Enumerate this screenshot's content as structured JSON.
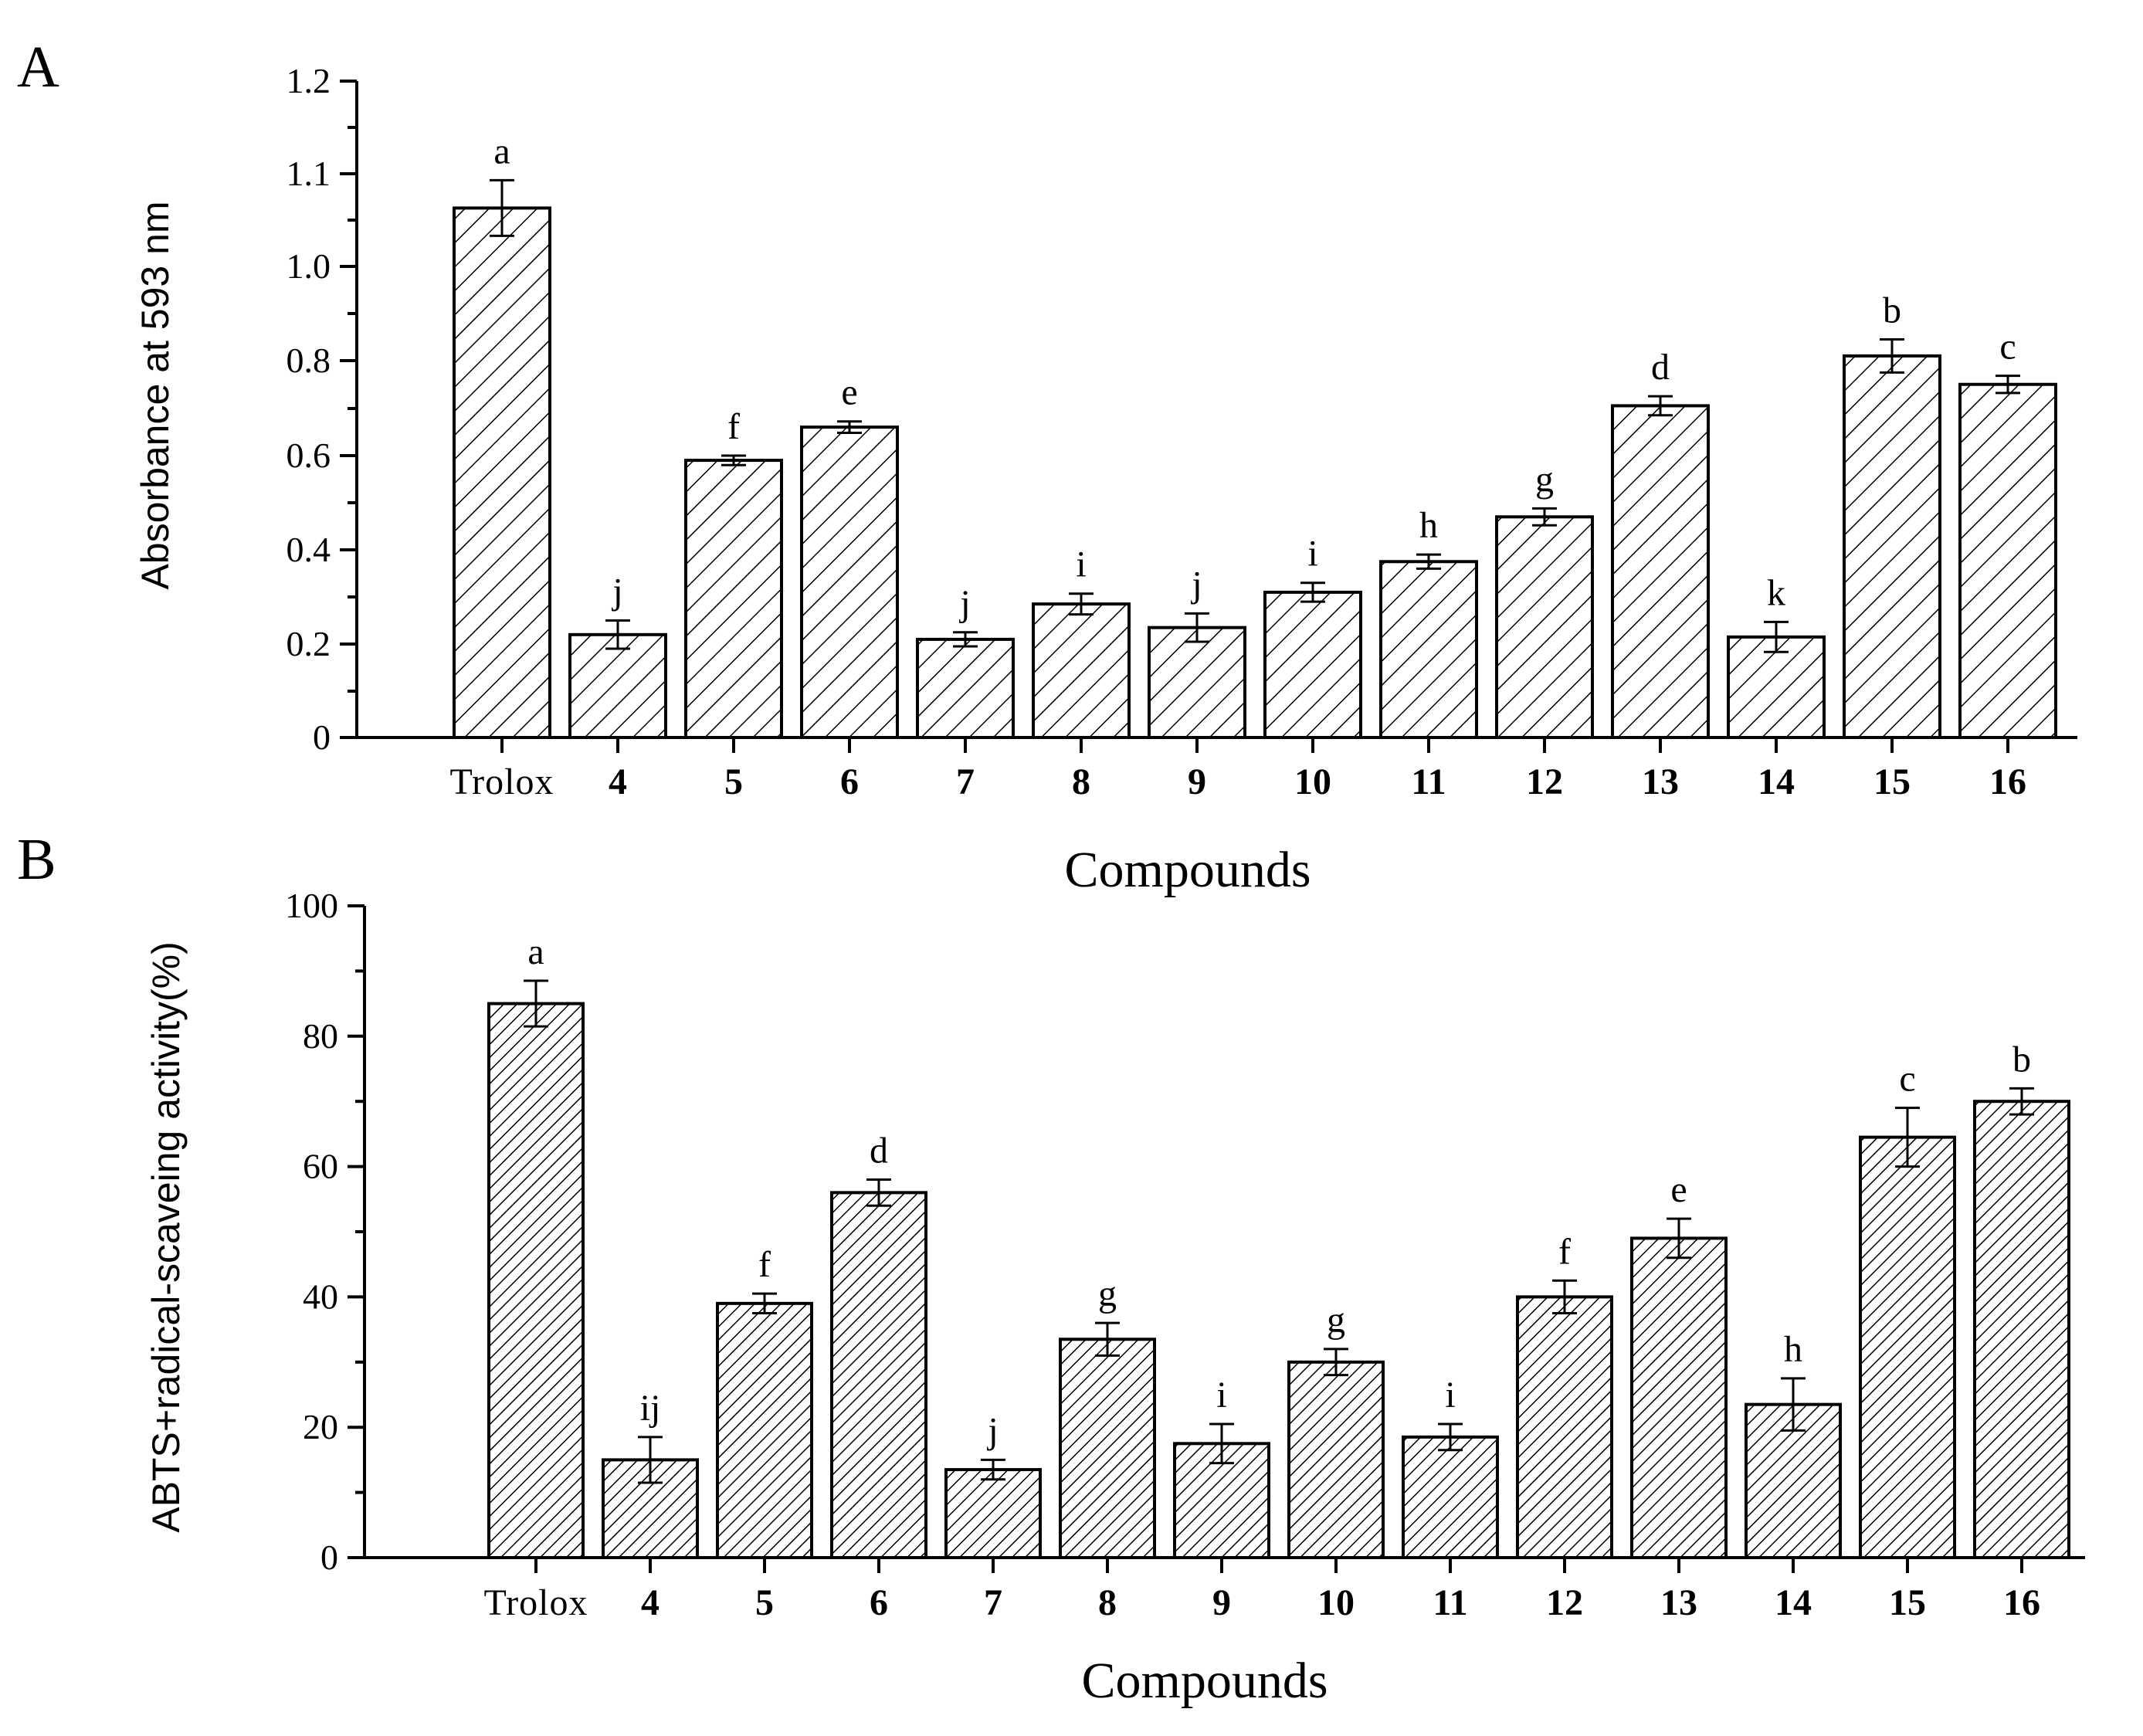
{
  "chart_data": [
    {
      "panel": "A",
      "type": "bar",
      "title": "",
      "xlabel": "Compounds",
      "ylabel": "Absorbance at 593 nm",
      "ylim": [
        0,
        1.2
      ],
      "yticks": [
        "0",
        "0.2",
        "0.4",
        "0.6",
        "0.8",
        "1.0",
        "1.1",
        "1.2"
      ],
      "categories": [
        "Trolox",
        "4",
        "5",
        "6",
        "7",
        "8",
        "9",
        "10",
        "11",
        "12",
        "13",
        "14",
        "15",
        "16"
      ],
      "values": [
        1.063,
        0.22,
        0.59,
        0.66,
        0.21,
        0.285,
        0.235,
        0.31,
        0.375,
        0.47,
        0.705,
        0.215,
        0.81,
        0.75
      ],
      "errors": [
        0.03,
        0.03,
        0.01,
        0.012,
        0.015,
        0.022,
        0.03,
        0.02,
        0.015,
        0.018,
        0.02,
        0.032,
        0.035,
        0.018
      ],
      "significance": [
        "a",
        "j",
        "f",
        "e",
        "j",
        "i",
        "j",
        "i",
        "h",
        "g",
        "d",
        "k",
        "b",
        "c"
      ],
      "pattern": "diagonal-hatch-sparse"
    },
    {
      "panel": "B",
      "type": "bar",
      "title": "",
      "xlabel": "Compounds",
      "ylabel": "ABTS+radical-scaveing activity(%)",
      "ylim": [
        0,
        100
      ],
      "yticks": [
        "0",
        "20",
        "40",
        "60",
        "80",
        "100"
      ],
      "categories": [
        "Trolox",
        "4",
        "5",
        "6",
        "7",
        "8",
        "9",
        "10",
        "11",
        "12",
        "13",
        "14",
        "15",
        "16"
      ],
      "values": [
        85,
        15,
        39,
        56,
        13.5,
        33.5,
        17.5,
        30,
        18.5,
        40,
        49,
        23.5,
        64.5,
        70
      ],
      "errors": [
        3.5,
        3.5,
        1.5,
        2,
        1.5,
        2.5,
        3,
        2,
        2,
        2.5,
        3,
        4,
        4.5,
        2
      ],
      "significance": [
        "a",
        "ij",
        "f",
        "d",
        "j",
        "g",
        "i",
        "g",
        "i",
        "f",
        "e",
        "h",
        "c",
        "b"
      ],
      "pattern": "diagonal-hatch-dense"
    }
  ]
}
